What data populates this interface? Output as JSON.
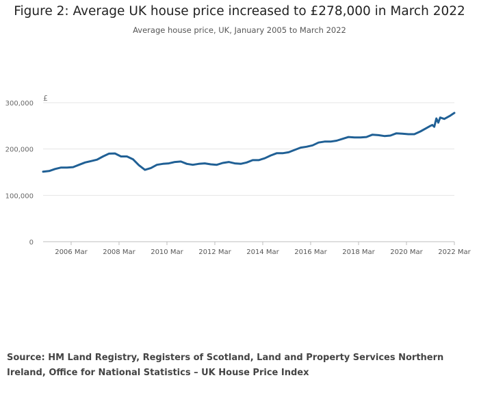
{
  "chart_data": {
    "type": "line",
    "title": "Figure 2: Average UK house price increased to £278,000 in March 2022",
    "subtitle": "Average house price, UK, January 2005 to March 2022",
    "ylabel": "£",
    "xlabel": "",
    "ylim": [
      0,
      300000
    ],
    "xlim": [
      2005.0,
      2022.17
    ],
    "grid": true,
    "y_ticks": [
      {
        "value": 0,
        "label": "0"
      },
      {
        "value": 100000,
        "label": "100,000"
      },
      {
        "value": 200000,
        "label": "200,000"
      },
      {
        "value": 300000,
        "label": "300,000"
      }
    ],
    "x_ticks": [
      {
        "value": 2006.17,
        "label": "2006 Mar"
      },
      {
        "value": 2008.17,
        "label": "2008 Mar"
      },
      {
        "value": 2010.17,
        "label": "2010 Mar"
      },
      {
        "value": 2012.17,
        "label": "2012 Mar"
      },
      {
        "value": 2014.17,
        "label": "2014 Mar"
      },
      {
        "value": 2016.17,
        "label": "2016 Mar"
      },
      {
        "value": 2018.17,
        "label": "2018 Mar"
      },
      {
        "value": 2020.17,
        "label": "2020 Mar"
      },
      {
        "value": 2022.17,
        "label": "2022 Mar"
      }
    ],
    "series": [
      {
        "name": "Average house price",
        "color": "#206095",
        "x": [
          2005.0,
          2005.25,
          2005.5,
          2005.75,
          2006.0,
          2006.25,
          2006.5,
          2006.75,
          2007.0,
          2007.25,
          2007.5,
          2007.75,
          2008.0,
          2008.25,
          2008.5,
          2008.75,
          2009.0,
          2009.25,
          2009.5,
          2009.75,
          2010.0,
          2010.25,
          2010.5,
          2010.75,
          2011.0,
          2011.25,
          2011.5,
          2011.75,
          2012.0,
          2012.25,
          2012.5,
          2012.75,
          2013.0,
          2013.25,
          2013.5,
          2013.75,
          2014.0,
          2014.25,
          2014.5,
          2014.75,
          2015.0,
          2015.25,
          2015.5,
          2015.75,
          2016.0,
          2016.25,
          2016.5,
          2016.75,
          2017.0,
          2017.25,
          2017.5,
          2017.75,
          2018.0,
          2018.25,
          2018.5,
          2018.75,
          2019.0,
          2019.25,
          2019.5,
          2019.75,
          2020.0,
          2020.25,
          2020.5,
          2020.75,
          2021.0,
          2021.17,
          2021.25,
          2021.33,
          2021.42,
          2021.5,
          2021.58,
          2021.75,
          2022.0,
          2022.17
        ],
        "values": [
          151000,
          152500,
          157000,
          160000,
          160000,
          161000,
          166000,
          171000,
          174000,
          177000,
          184000,
          190000,
          190500,
          184000,
          184000,
          178000,
          165000,
          155000,
          159000,
          166000,
          168000,
          169000,
          172000,
          173000,
          168000,
          166000,
          168000,
          169000,
          167000,
          166000,
          170000,
          172000,
          169000,
          168000,
          171000,
          176000,
          176000,
          180000,
          186000,
          191000,
          191000,
          193000,
          198000,
          203000,
          205000,
          208000,
          214000,
          216000,
          216000,
          218000,
          222000,
          226000,
          225000,
          225000,
          226000,
          231000,
          230000,
          228000,
          229000,
          234000,
          233000,
          232000,
          232000,
          238000,
          245000,
          250000,
          252000,
          248000,
          266000,
          257000,
          268000,
          265000,
          272000,
          278000
        ]
      }
    ]
  },
  "source": "Source: HM Land Registry, Registers of Scotland, Land and Property Services Northern Ireland, Office for National Statistics – UK House Price Index"
}
